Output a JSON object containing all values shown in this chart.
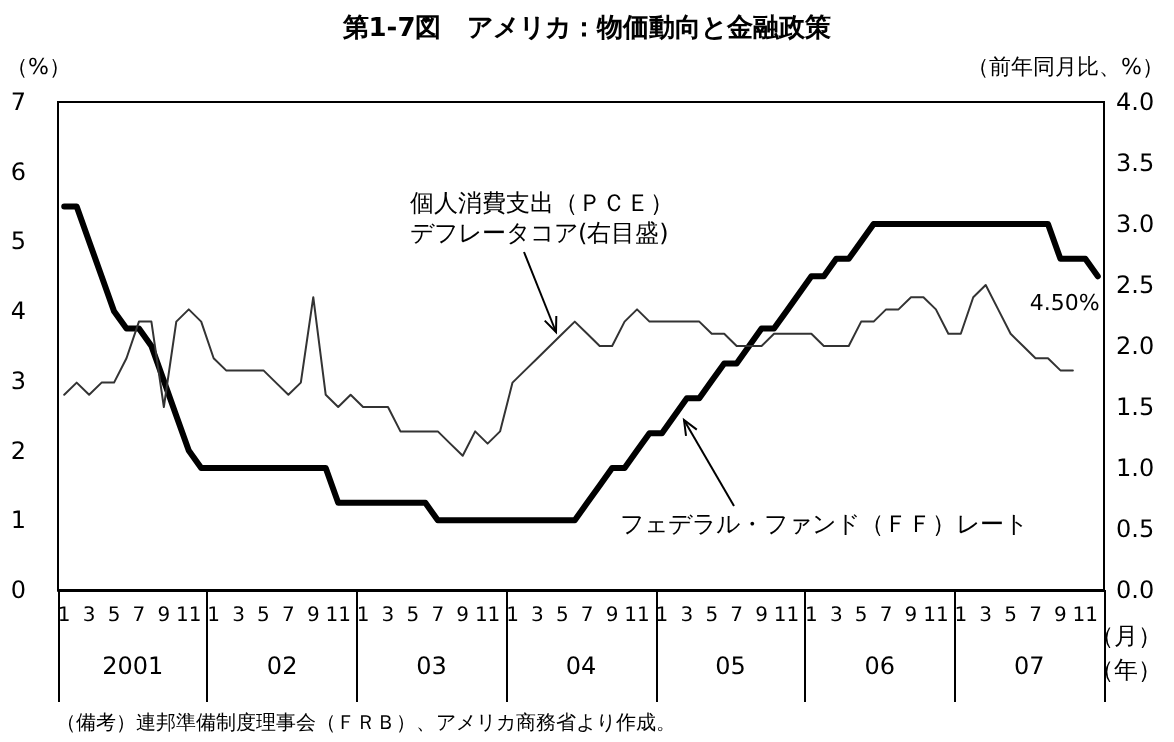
{
  "chart_data": {
    "type": "line",
    "title": "第1-7図　アメリカ：物価動向と金融政策",
    "ylabel": "（%）",
    "y2label": "（前年同月比、%）",
    "categories": [
      "1",
      null,
      "3",
      null,
      "5",
      null,
      "7",
      null,
      "9",
      null,
      "11",
      null,
      "1",
      null,
      "3",
      null,
      "5",
      null,
      "7",
      null,
      "9",
      null,
      "11",
      null,
      "1",
      null,
      "3",
      null,
      "5",
      null,
      "7",
      null,
      "9",
      null,
      "11",
      null,
      "1",
      null,
      "3",
      null,
      "5",
      null,
      "7",
      null,
      "9",
      null,
      "11",
      null,
      "1",
      null,
      "3",
      null,
      "5",
      null,
      "7",
      null,
      "9",
      null,
      "11",
      null,
      "1",
      null,
      "3",
      null,
      "5",
      null,
      "7",
      null,
      "9",
      null,
      "11",
      null,
      "1",
      null,
      "3",
      null,
      "5",
      null,
      "7",
      null,
      "9",
      null,
      "11",
      null
    ],
    "series": [
      {
        "name": "フェデラル・ファンド（ＦＦ）レート",
        "color": "#000000",
        "values": [
          5.5,
          5.5,
          5.0,
          4.5,
          4.0,
          3.75,
          3.75,
          3.5,
          3.0,
          2.5,
          2.0,
          1.75,
          1.75,
          1.75,
          1.75,
          1.75,
          1.75,
          1.75,
          1.75,
          1.75,
          1.75,
          1.75,
          1.25,
          1.25,
          1.25,
          1.25,
          1.25,
          1.25,
          1.25,
          1.25,
          1.0,
          1.0,
          1.0,
          1.0,
          1.0,
          1.0,
          1.0,
          1.0,
          1.0,
          1.0,
          1.0,
          1.0,
          1.25,
          1.5,
          1.75,
          1.75,
          2.0,
          2.25,
          2.25,
          2.5,
          2.75,
          2.75,
          3.0,
          3.25,
          3.25,
          3.5,
          3.75,
          3.75,
          4.0,
          4.25,
          4.5,
          4.5,
          4.75,
          4.75,
          5.0,
          5.25,
          5.25,
          5.25,
          5.25,
          5.25,
          5.25,
          5.25,
          5.25,
          5.25,
          5.25,
          5.25,
          5.25,
          5.25,
          5.25,
          5.25,
          4.75,
          4.75,
          4.75,
          4.5
        ]
      },
      {
        "name": "個人消費支出（ＰＣＥ）デフレータコア(右目盛)",
        "color": "#333333",
        "axis": "y2",
        "values": [
          1.6,
          1.7,
          1.6,
          1.7,
          1.7,
          1.9,
          2.2,
          2.2,
          1.5,
          2.2,
          2.3,
          2.2,
          1.9,
          1.8,
          1.8,
          1.8,
          1.8,
          1.7,
          1.6,
          1.7,
          2.4,
          1.6,
          1.5,
          1.6,
          1.5,
          1.5,
          1.5,
          1.3,
          1.3,
          1.3,
          1.3,
          1.2,
          1.1,
          1.3,
          1.2,
          1.3,
          1.7,
          1.8,
          1.9,
          2.0,
          2.1,
          2.2,
          2.1,
          2.0,
          2.0,
          2.2,
          2.3,
          2.2,
          2.2,
          2.2,
          2.2,
          2.2,
          2.1,
          2.1,
          2.0,
          2.0,
          2.0,
          2.1,
          2.1,
          2.1,
          2.1,
          2.0,
          2.0,
          2.0,
          2.2,
          2.2,
          2.3,
          2.3,
          2.4,
          2.4,
          2.3,
          2.1,
          2.1,
          2.4,
          2.5,
          2.3,
          2.1,
          2.0,
          1.9,
          1.9,
          1.8,
          1.8,
          null,
          null
        ]
      }
    ],
    "ylim": [
      0,
      7
    ],
    "yticks": [
      0,
      1,
      2,
      3,
      4,
      5,
      6,
      7
    ],
    "y2lim": [
      0,
      4
    ],
    "y2ticks": [
      {
        "value": 0,
        "label": "0.0"
      },
      {
        "value": 0.5,
        "label": "0.5"
      },
      {
        "value": 1,
        "label": "1.0"
      },
      {
        "value": 1.5,
        "label": "1.5"
      },
      {
        "value": 2,
        "label": "2.0"
      },
      {
        "value": 2.5,
        "label": "2.5"
      },
      {
        "value": 3,
        "label": "3.0"
      },
      {
        "value": 3.5,
        "label": "3.5"
      },
      {
        "value": 4,
        "label": "4.0"
      }
    ],
    "annotations": [
      "（月）",
      "（年）",
      "4.50%",
      "（備考）連邦準備制度理事会（ＦＲＢ）、アメリカ商務省より作成。",
      "2001",
      "02",
      "03",
      "04",
      "05",
      "06",
      "07"
    ],
    "grid": false,
    "legend": false,
    "marker": "none",
    "line_style": "solid"
  }
}
